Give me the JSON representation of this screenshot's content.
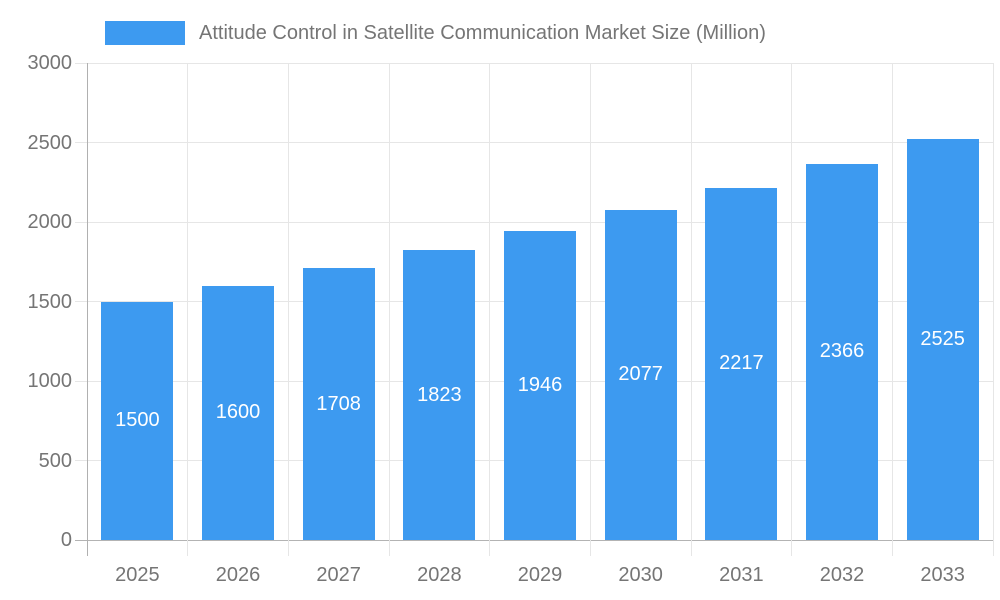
{
  "legend": {
    "label": "Attitude Control in Satellite Communication Market Size (Million)"
  },
  "chart_data": {
    "type": "bar",
    "title": "Attitude Control in Satellite Communication Market Size (Million)",
    "categories": [
      "2025",
      "2026",
      "2027",
      "2028",
      "2029",
      "2030",
      "2031",
      "2032",
      "2033"
    ],
    "values": [
      1500,
      1600,
      1708,
      1823,
      1946,
      2077,
      2217,
      2366,
      2525
    ],
    "series": [
      {
        "name": "Attitude Control in Satellite Communication Market Size (Million)",
        "values": [
          1500,
          1600,
          1708,
          1823,
          1946,
          2077,
          2217,
          2366,
          2525
        ]
      }
    ],
    "xlabel": "",
    "ylabel": "",
    "ylim": [
      0,
      3000
    ],
    "yticks": [
      0,
      500,
      1000,
      1500,
      2000,
      2500,
      3000
    ],
    "grid": true,
    "legend_position": "top",
    "value_labels": "inside-center",
    "colors": {
      "bar": "#3d9af0",
      "axis_text": "#757575",
      "gridline": "#e6e6e6",
      "axis_line": "#b0b0b0",
      "baseline": "#b3b3b3",
      "value_label": "#ffffff",
      "background": "#ffffff"
    }
  }
}
